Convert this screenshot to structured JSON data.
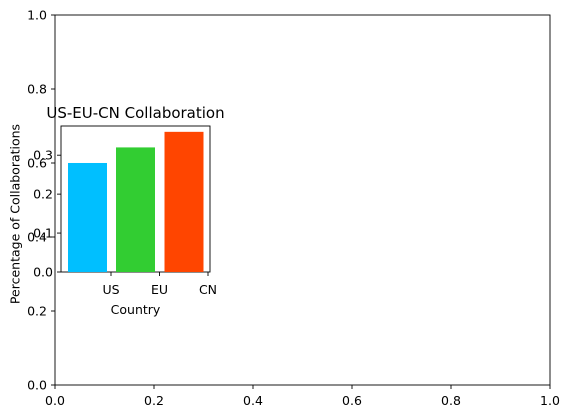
{
  "chart_data": [
    {
      "type": "empty",
      "xlim": [
        0.0,
        1.0
      ],
      "ylim": [
        0.0,
        1.0
      ],
      "xticks": [
        0.0,
        0.2,
        0.4,
        0.6,
        0.8,
        1.0
      ],
      "yticks": [
        0.0,
        0.2,
        0.4,
        0.6,
        0.8,
        1.0
      ],
      "xtick_labels": [
        "0.0",
        "0.2",
        "0.4",
        "0.6",
        "0.8",
        "1.0"
      ],
      "ytick_labels": [
        "0.0",
        "0.2",
        "0.4",
        "0.6",
        "0.8",
        "1.0"
      ],
      "title": "",
      "xlabel": "",
      "ylabel": ""
    },
    {
      "type": "bar",
      "title": "US-EU-CN Collaboration",
      "xlabel": "Country",
      "ylabel": "Percentage of Collaborations",
      "categories": [
        "US",
        "EU",
        "CN"
      ],
      "values": [
        0.28,
        0.32,
        0.36
      ],
      "colors": [
        "#00bfff",
        "#32cd32",
        "#ff4500"
      ],
      "ylim": [
        0.0,
        0.375
      ],
      "yticks": [
        0.0,
        0.1,
        0.2,
        0.3
      ],
      "ytick_labels": [
        "0.0",
        "0.1",
        "0.2",
        "0.3"
      ],
      "xtick_labels": [
        "US",
        "EU",
        "CN"
      ]
    }
  ]
}
